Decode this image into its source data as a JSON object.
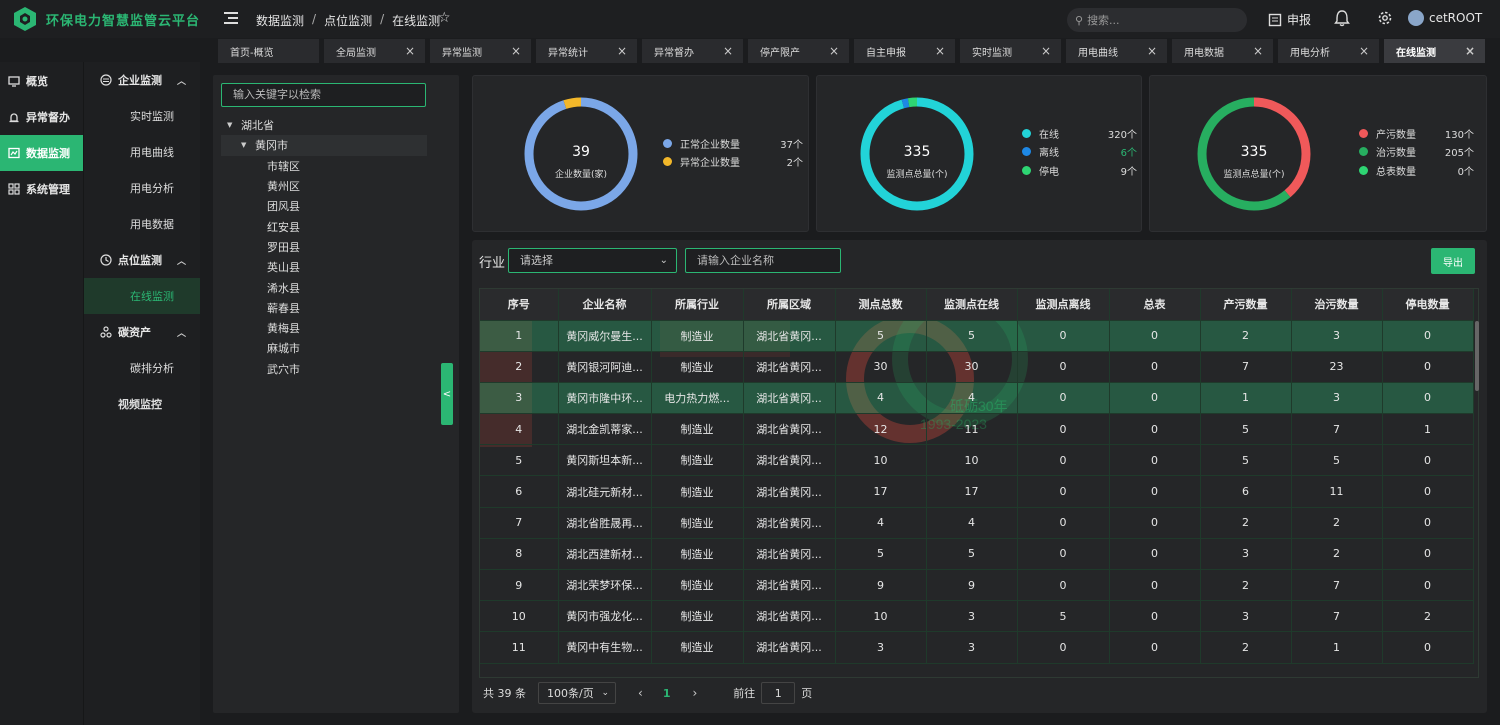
{
  "app": {
    "title": "环保电力智慧监管云平台"
  },
  "header": {
    "breadcrumb": [
      "数据监测",
      "点位监测",
      "在线监测"
    ],
    "search_placeholder": "搜索...",
    "report_label": "申报",
    "user": "cetROOT"
  },
  "tabs": [
    {
      "label": "首页-概览",
      "closable": false
    },
    {
      "label": "全局监测",
      "closable": true
    },
    {
      "label": "异常监测",
      "closable": true
    },
    {
      "label": "异常统计",
      "closable": true
    },
    {
      "label": "异常督办",
      "closable": true
    },
    {
      "label": "停产限产",
      "closable": true
    },
    {
      "label": "自主申报",
      "closable": true
    },
    {
      "label": "实时监测",
      "closable": true
    },
    {
      "label": "用电曲线",
      "closable": true
    },
    {
      "label": "用电数据",
      "closable": true
    },
    {
      "label": "用电分析",
      "closable": true
    },
    {
      "label": "在线监测",
      "closable": true,
      "active": true
    }
  ],
  "nav1": [
    {
      "label": "概览",
      "icon": "overview-icon"
    },
    {
      "label": "异常督办",
      "icon": "alarm-icon"
    },
    {
      "label": "数据监测",
      "icon": "data-icon",
      "active": true
    },
    {
      "label": "系统管理",
      "icon": "system-icon"
    }
  ],
  "nav2": {
    "groups": [
      {
        "label": "企业监测",
        "icon": "enterprise-icon",
        "items": [
          "实时监测",
          "用电曲线",
          "用电分析",
          "用电数据"
        ]
      },
      {
        "label": "点位监测",
        "icon": "point-icon",
        "items": [
          "在线监测"
        ]
      },
      {
        "label": "碳资产",
        "icon": "carbon-icon",
        "items": [
          "碳排分析"
        ]
      }
    ],
    "extra": "视频监控",
    "active_item": "在线监测"
  },
  "tree": {
    "search_placeholder": "输入关键字以检索",
    "province": "湖北省",
    "city": "黄冈市",
    "districts": [
      "市辖区",
      "黄州区",
      "团风县",
      "红安县",
      "罗田县",
      "英山县",
      "浠水县",
      "蕲春县",
      "黄梅县",
      "麻城市",
      "武穴市"
    ]
  },
  "cards": [
    {
      "center_value": "39",
      "center_label": "企业数量(家)",
      "legend": [
        {
          "label": "正常企业数量",
          "value": "37个",
          "color": "#7ba7e8",
          "count": 37
        },
        {
          "label": "异常企业数量",
          "value": "2个",
          "color": "#f2b72a",
          "count": 2
        }
      ]
    },
    {
      "center_value": "335",
      "center_label": "监测点总量(个)",
      "legend": [
        {
          "label": "在线",
          "value": "320个",
          "color": "#22d3d8",
          "count": 320
        },
        {
          "label": "离线",
          "value": "6个",
          "color": "#1e88e5",
          "count": 6,
          "value_color": "#2bb673"
        },
        {
          "label": "停电",
          "value": "9个",
          "color": "#2ed573",
          "count": 9
        }
      ]
    },
    {
      "center_value": "335",
      "center_label": "监测点总量(个)",
      "legend": [
        {
          "label": "产污数量",
          "value": "130个",
          "color": "#f0595a",
          "count": 130
        },
        {
          "label": "治污数量",
          "value": "205个",
          "color": "#27ae60",
          "count": 205
        },
        {
          "label": "总表数量",
          "value": "0个",
          "color": "#2ed573",
          "count": 0
        }
      ]
    }
  ],
  "filters": {
    "industry_label": "行业",
    "industry_placeholder": "请选择",
    "name_placeholder": "请输入企业名称",
    "export_label": "导出"
  },
  "table": {
    "headers": [
      "序号",
      "企业名称",
      "所属行业",
      "所属区域",
      "测点总数",
      "监测点在线",
      "监测点离线",
      "总表",
      "产污数量",
      "治污数量",
      "停电数量"
    ],
    "rows": [
      [
        "1",
        "黄冈威尔曼生...",
        "制造业",
        "湖北省黄冈...",
        "5",
        "5",
        "0",
        "0",
        "2",
        "3",
        "0"
      ],
      [
        "2",
        "黄冈银河阿迪...",
        "制造业",
        "湖北省黄冈...",
        "30",
        "30",
        "0",
        "0",
        "7",
        "23",
        "0"
      ],
      [
        "3",
        "黄冈市隆中环...",
        "电力热力燃...",
        "湖北省黄冈...",
        "4",
        "4",
        "0",
        "0",
        "1",
        "3",
        "0"
      ],
      [
        "4",
        "湖北金凯蒂家...",
        "制造业",
        "湖北省黄冈...",
        "12",
        "11",
        "0",
        "0",
        "5",
        "7",
        "1"
      ],
      [
        "5",
        "黄冈斯坦本新...",
        "制造业",
        "湖北省黄冈...",
        "10",
        "10",
        "0",
        "0",
        "5",
        "5",
        "0"
      ],
      [
        "6",
        "湖北硅元新材...",
        "制造业",
        "湖北省黄冈...",
        "17",
        "17",
        "0",
        "0",
        "6",
        "11",
        "0"
      ],
      [
        "7",
        "湖北省胜晟再...",
        "制造业",
        "湖北省黄冈...",
        "4",
        "4",
        "0",
        "0",
        "2",
        "2",
        "0"
      ],
      [
        "8",
        "湖北西建新材...",
        "制造业",
        "湖北省黄冈...",
        "5",
        "5",
        "0",
        "0",
        "3",
        "2",
        "0"
      ],
      [
        "9",
        "湖北荣梦环保...",
        "制造业",
        "湖北省黄冈...",
        "9",
        "9",
        "0",
        "0",
        "2",
        "7",
        "0"
      ],
      [
        "10",
        "黄冈市强龙化...",
        "制造业",
        "湖北省黄冈...",
        "10",
        "3",
        "5",
        "0",
        "3",
        "7",
        "2"
      ],
      [
        "11",
        "黄冈中有生物...",
        "制造业",
        "湖北省黄冈...",
        "3",
        "3",
        "0",
        "0",
        "2",
        "1",
        "0"
      ]
    ],
    "highlighted_rows": [
      1,
      3
    ]
  },
  "watermark": {
    "text": "砥砺30年",
    "years": "1993-2023"
  },
  "pagination": {
    "total": "共 39 条",
    "page_size": "100条/页",
    "prev": "‹",
    "current": "1",
    "next": "›",
    "goto_label": "前往",
    "goto_value": "1",
    "page_suffix": "页"
  },
  "collapse_label": "<"
}
